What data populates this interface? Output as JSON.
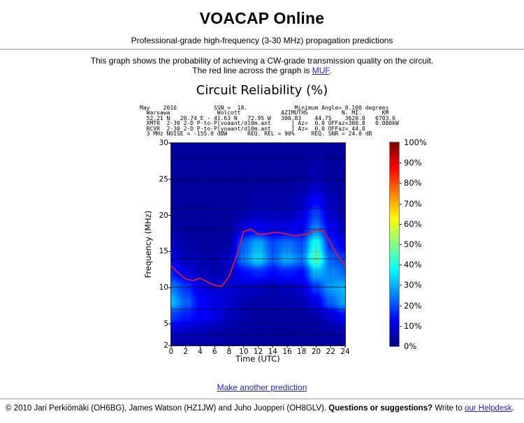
{
  "header": {
    "title": "VOACAP Online",
    "subtitle": "Professional-grade high-frequency (3-30 MHz) propagation predictions"
  },
  "description": {
    "line1": "This graph shows the probability of achieving a CW-grade transmission quality on the circuit.",
    "line2_prefix": "The red line across the graph is ",
    "muf_link": "MUF",
    "line2_suffix": "."
  },
  "chart": {
    "title": "Circuit Reliability (%)",
    "header_text": "May    2010           SSN =  18.              Minimum Angle= 0.100 degrees\n  Warsawa              Wolcott            AZIMUTHS          N. MI.      KM\n  52.21 N   20.74 E - 41.63 N   72.95 W   300.83    44.75    3620.0   6703.6\n  XMTR  2-30 2-D P-to-P[voaant/d10m.ant      ] Az=  0.0 OFFaz=300.8   0.080kW\n  RCVR  2-30 2-D P-to-P[voaant/d10m.ant      ] Az=  0.0 OFFaz= 44.8\n  3 MHz NOISE = -155.0 dBW      REQ. REL = 90%     REQ. SNR = 24.0 dB",
    "xlabel": "Time (UTC)",
    "ylabel": "Frequency (MHz)"
  },
  "chart_data": {
    "type": "heatmap",
    "title": "Circuit Reliability (%)",
    "xlabel": "Time (UTC)",
    "ylabel": "Frequency (MHz)",
    "x_range": [
      0,
      24
    ],
    "y_range": [
      2,
      30
    ],
    "x_ticks": [
      0,
      2,
      4,
      6,
      8,
      10,
      12,
      14,
      16,
      18,
      20,
      22,
      24
    ],
    "y_ticks": [
      2,
      5,
      10,
      15,
      20,
      25,
      30
    ],
    "dotted_grid_mhz": [
      5,
      10,
      15,
      20,
      25
    ],
    "band_lines_mhz": [
      3.5,
      7,
      10.1,
      14,
      18.1,
      21,
      24.9,
      28
    ],
    "colormap": "jet",
    "colorbar": {
      "tick_labels": [
        "100%",
        "90%",
        "80%",
        "70%",
        "60%",
        "50%",
        "40%",
        "30%",
        "20%",
        "10%",
        "0%"
      ],
      "range_pct": [
        0,
        100
      ]
    },
    "grid": {
      "hours": [
        0,
        2,
        4,
        6,
        8,
        10,
        12,
        14,
        16,
        18,
        20,
        22,
        24
      ],
      "freqs_mhz_top_to_bottom": [
        30,
        28,
        26,
        24,
        22,
        20,
        18,
        16,
        14,
        12,
        10,
        8,
        6,
        4,
        2
      ],
      "reliability_pct": [
        [
          3,
          3,
          3,
          3,
          3,
          3,
          3,
          3,
          3,
          3,
          3,
          3,
          3
        ],
        [
          3,
          3,
          3,
          3,
          3,
          3,
          3,
          3,
          3,
          3,
          4,
          3,
          3
        ],
        [
          3,
          3,
          3,
          3,
          3,
          3,
          3,
          3,
          3,
          3,
          5,
          3,
          3
        ],
        [
          3,
          3,
          3,
          3,
          3,
          3,
          3,
          3,
          3,
          4,
          7,
          4,
          3
        ],
        [
          3,
          3,
          3,
          3,
          3,
          3,
          4,
          4,
          4,
          6,
          13,
          6,
          3
        ],
        [
          3,
          3,
          3,
          3,
          3,
          5,
          7,
          6,
          6,
          9,
          20,
          8,
          4
        ],
        [
          4,
          3,
          3,
          3,
          3,
          10,
          13,
          10,
          11,
          12,
          26,
          12,
          6
        ],
        [
          6,
          4,
          3,
          3,
          4,
          22,
          30,
          20,
          24,
          20,
          40,
          16,
          10
        ],
        [
          10,
          6,
          5,
          4,
          7,
          25,
          34,
          22,
          30,
          24,
          46,
          22,
          18
        ],
        [
          15,
          10,
          6,
          5,
          6,
          13,
          16,
          13,
          15,
          13,
          30,
          26,
          23
        ],
        [
          25,
          18,
          10,
          8,
          8,
          7,
          6,
          5,
          6,
          8,
          18,
          28,
          31
        ],
        [
          31,
          22,
          13,
          10,
          8,
          5,
          4,
          4,
          4,
          5,
          10,
          22,
          29
        ],
        [
          18,
          15,
          12,
          10,
          6,
          4,
          3,
          3,
          3,
          3,
          4,
          8,
          13
        ],
        [
          8,
          7,
          6,
          5,
          4,
          3,
          3,
          3,
          3,
          3,
          3,
          4,
          5
        ],
        [
          4,
          4,
          4,
          4,
          3,
          3,
          3,
          3,
          3,
          3,
          3,
          3,
          3
        ]
      ]
    },
    "muf_line": {
      "label": "MUF",
      "color": "#e51b2c",
      "hours": [
        0,
        1,
        2,
        3,
        4,
        5,
        6,
        7,
        8,
        9,
        10,
        11,
        12,
        13,
        14,
        15,
        16,
        17,
        18,
        19,
        20,
        21,
        22,
        23,
        24
      ],
      "mhz": [
        13.0,
        12.0,
        11.2,
        11.0,
        11.3,
        10.8,
        10.3,
        10.2,
        11.6,
        14.3,
        17.8,
        18.1,
        17.4,
        17.4,
        17.6,
        17.6,
        17.4,
        17.2,
        17.3,
        17.5,
        18.0,
        17.9,
        16.2,
        14.4,
        13.1
      ]
    }
  },
  "links": {
    "make_another": "Make another prediction"
  },
  "footer": {
    "copyright": "© 2010 Jari Perkiömäki (OH6BG), James Watson (HZ1JW) and Juho Juopperi (OH8GLV). ",
    "question": "Questions or suggestions?",
    "write_to": " Write to ",
    "helpdesk_link": "our Helpdesk",
    "suffix": "."
  },
  "colors": {
    "link": "#2323cc",
    "muf_line": "#e51b2c",
    "heatmap_low": "#000083",
    "heatmap_high": "#800000"
  }
}
